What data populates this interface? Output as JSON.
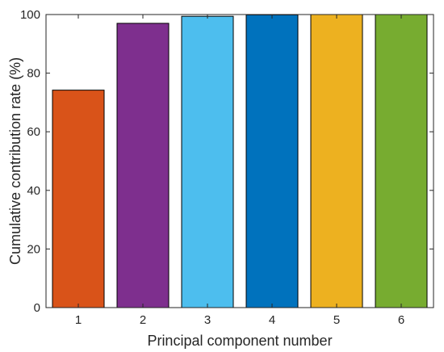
{
  "chart_data": {
    "type": "bar",
    "categories": [
      "1",
      "2",
      "3",
      "4",
      "5",
      "6"
    ],
    "values": [
      74.2,
      97.0,
      99.4,
      99.9,
      100.0,
      100.0
    ],
    "bar_colors": [
      "#D95319",
      "#7E2F8E",
      "#4DBEEE",
      "#0072BD",
      "#EDB120",
      "#77AC30"
    ],
    "xlabel": "Principal component number",
    "ylabel": "Cumulative contribution rate (%)",
    "ylim": [
      0,
      100
    ],
    "yticks": [
      0,
      20,
      40,
      60,
      80,
      100
    ],
    "grid": false,
    "legend": "none"
  }
}
